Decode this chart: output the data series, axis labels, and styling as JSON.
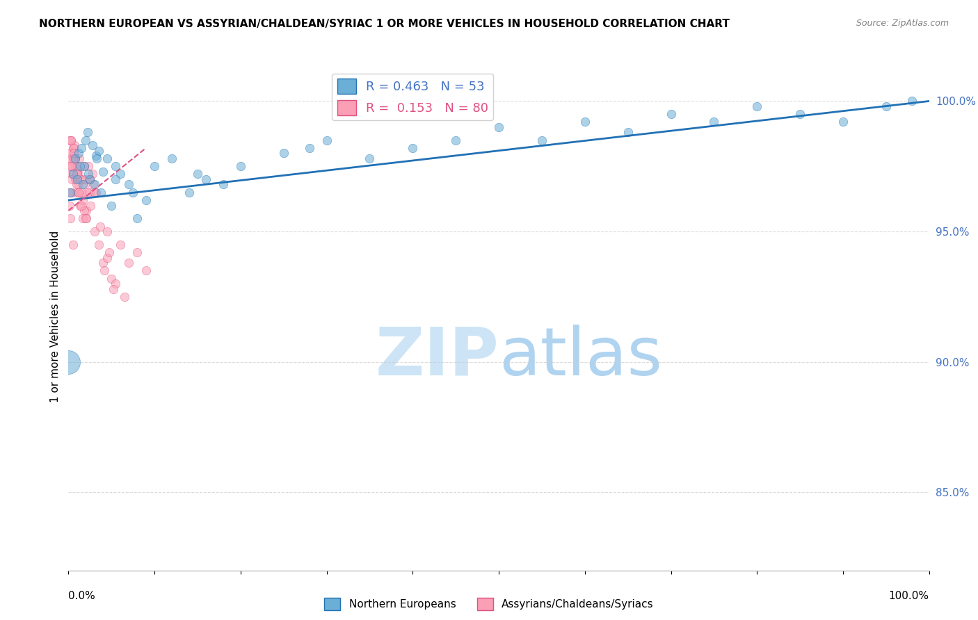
{
  "title": "NORTHERN EUROPEAN VS ASSYRIAN/CHALDEAN/SYRIAC 1 OR MORE VEHICLES IN HOUSEHOLD CORRELATION CHART",
  "source": "Source: ZipAtlas.com",
  "ylabel": "1 or more Vehicles in Household",
  "blue_R": 0.463,
  "blue_N": 53,
  "pink_R": 0.153,
  "pink_N": 80,
  "legend_label_blue": "Northern Europeans",
  "legend_label_pink": "Assyrians/Chaldeans/Syriacs",
  "blue_color": "#6baed6",
  "pink_color": "#fa9fb5",
  "blue_line_color": "#2171b5",
  "pink_line_color": "#e05080",
  "blue_scatter_x": [
    0.2,
    0.5,
    0.8,
    1.2,
    1.5,
    1.8,
    2.0,
    2.2,
    2.5,
    2.8,
    3.0,
    3.2,
    3.5,
    3.8,
    4.0,
    4.5,
    5.0,
    5.5,
    6.0,
    7.0,
    8.0,
    9.0,
    10.0,
    12.0,
    14.0,
    16.0,
    18.0,
    20.0,
    25.0,
    30.0,
    35.0,
    40.0,
    45.0,
    50.0,
    55.0,
    60.0,
    65.0,
    70.0,
    75.0,
    80.0,
    85.0,
    90.0,
    95.0,
    98.0,
    1.0,
    1.3,
    1.7,
    2.3,
    3.3,
    5.5,
    7.5,
    15.0,
    28.0
  ],
  "blue_scatter_y": [
    96.5,
    97.2,
    97.8,
    98.0,
    98.2,
    97.5,
    98.5,
    98.8,
    97.0,
    98.3,
    96.8,
    97.9,
    98.1,
    96.5,
    97.3,
    97.8,
    96.0,
    97.5,
    97.2,
    96.8,
    95.5,
    96.2,
    97.5,
    97.8,
    96.5,
    97.0,
    96.8,
    97.5,
    98.0,
    98.5,
    97.8,
    98.2,
    98.5,
    99.0,
    98.5,
    99.2,
    98.8,
    99.5,
    99.2,
    99.8,
    99.5,
    99.2,
    99.8,
    100.0,
    97.0,
    97.5,
    96.8,
    97.2,
    97.8,
    97.0,
    96.5,
    97.2,
    98.2
  ],
  "pink_scatter_x": [
    0.1,
    0.2,
    0.3,
    0.4,
    0.5,
    0.6,
    0.7,
    0.8,
    0.9,
    1.0,
    1.1,
    1.2,
    1.3,
    1.5,
    1.7,
    1.9,
    2.1,
    2.3,
    2.5,
    2.8,
    3.0,
    3.5,
    4.0,
    4.5,
    5.0,
    5.5,
    6.0,
    7.0,
    8.0,
    9.0,
    0.15,
    0.25,
    0.35,
    0.55,
    0.65,
    0.75,
    0.85,
    0.95,
    1.05,
    1.15,
    1.25,
    1.45,
    1.65,
    1.85,
    2.05,
    2.25,
    2.55,
    2.85,
    3.2,
    3.7,
    4.2,
    4.7,
    5.2,
    6.5,
    0.1,
    0.2,
    0.5,
    1.0,
    2.0,
    3.0,
    0.3,
    0.7,
    1.5,
    0.4,
    0.6,
    0.8,
    1.0,
    1.2,
    1.8,
    2.5,
    0.15,
    0.35,
    0.55,
    2.0,
    4.5,
    0.3,
    1.5,
    2.5,
    0.6,
    0.9
  ],
  "pink_scatter_y": [
    98.0,
    97.5,
    98.5,
    97.2,
    98.2,
    97.8,
    98.3,
    97.0,
    96.5,
    97.5,
    96.8,
    97.2,
    96.0,
    97.0,
    95.5,
    96.8,
    95.8,
    97.5,
    96.5,
    97.2,
    95.0,
    94.5,
    93.8,
    94.0,
    93.2,
    93.0,
    94.5,
    93.8,
    94.2,
    93.5,
    98.5,
    97.8,
    96.5,
    97.2,
    98.0,
    97.5,
    97.0,
    96.8,
    97.3,
    96.5,
    97.8,
    97.0,
    96.2,
    95.8,
    95.5,
    96.5,
    96.0,
    96.8,
    96.5,
    95.2,
    93.5,
    94.2,
    92.8,
    92.5,
    96.5,
    95.5,
    94.5,
    97.5,
    97.0,
    96.5,
    98.5,
    97.8,
    96.5,
    97.0,
    98.2,
    97.8,
    97.2,
    96.5,
    97.5,
    97.0,
    96.0,
    97.5,
    97.8,
    95.5,
    95.0,
    97.5,
    96.0,
    97.0,
    98.0,
    97.2
  ],
  "xlim": [
    0.0,
    100.0
  ],
  "ylim": [
    82.0,
    101.5
  ],
  "blue_trend_x": [
    0.0,
    100.0
  ],
  "blue_trend_y": [
    96.2,
    100.0
  ],
  "pink_trend_x": [
    0.0,
    9.0
  ],
  "pink_trend_y": [
    95.8,
    98.2
  ],
  "grid_color": "#cccccc",
  "ytick_positions": [
    85.0,
    90.0,
    95.0,
    100.0
  ],
  "ytick_labels": [
    "85.0%",
    "90.0%",
    "95.0%",
    "100.0%"
  ]
}
